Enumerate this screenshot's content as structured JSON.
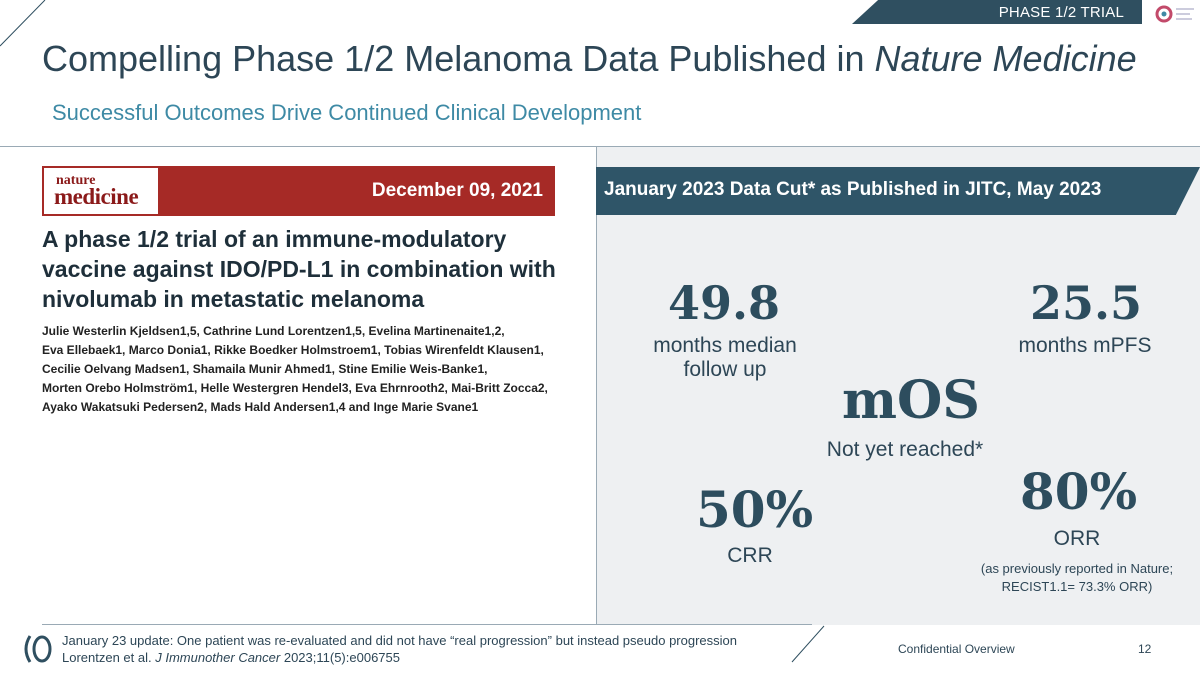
{
  "header": {
    "phase_tag": "PHASE 1/2 TRIAL",
    "title_main": "Compelling Phase 1/2 Melanoma Data Published in ",
    "title_journal": "Nature Medicine",
    "subtitle": "Successful Outcomes Drive Continued Clinical Development"
  },
  "left": {
    "journal_logo_line1": "nature",
    "journal_logo_line2": "medicine",
    "publication_date": "December 09, 2021",
    "paper_title": "A phase 1/2 trial of an immune-modulatory vaccine against IDO/PD-L1 in combination with nivolumab in metastatic melanoma",
    "authors": [
      "Julie Westerlin Kjeldsen1,5, Cathrine Lund Lorentzen1,5, Evelina Martinenaite1,2,",
      "Eva Ellebaek1, Marco Donia1, Rikke Boedker Holmstroem1, Tobias Wirenfeldt Klausen1,",
      "Cecilie Oelvang Madsen1, Shamaila Munir Ahmed1, Stine Emilie Weis-Banke1,",
      "Morten Orebo Holmström1, Helle Westergren Hendel3, Eva Ehrnrooth2, Mai-Britt Zocca2,",
      "Ayako Wakatsuki Pedersen2, Mads Hald Andersen1,4 and Inge Marie Svane1"
    ]
  },
  "right": {
    "banner": "January 2023 Data Cut* as Published in JITC, May 2023",
    "stats": {
      "median_follow_up_value": "49.8",
      "median_follow_up_label": "months median follow up",
      "mpfs_value": "25.5",
      "mpfs_label": "months mPFS",
      "mos_value": "mOS",
      "mos_label": "Not yet reached*",
      "crr_value": "50%",
      "crr_label": "CRR",
      "orr_value": "80%",
      "orr_label": "ORR",
      "orr_note": "(as previously reported in Nature; RECIST1.1= 73.3% ORR)"
    }
  },
  "footer": {
    "note_line1": "January 23 update: One patient was re-evaluated and did not have “real progression” but instead pseudo progression",
    "note_line2_prefix": "Lorentzen et al. ",
    "note_line2_journal": "J Immunother Cancer",
    "note_line2_suffix": " 2023;11(5):e006755",
    "confidential": "Confidential Overview",
    "page_number": "12"
  },
  "colors": {
    "navy": "#2d4656",
    "accent_teal": "#3e8aa5",
    "journal_red": "#a62a26",
    "banner": "#2f5568"
  }
}
